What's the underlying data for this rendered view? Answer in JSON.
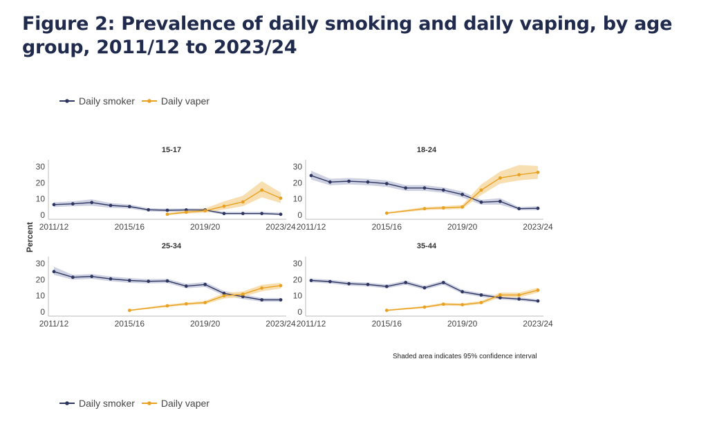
{
  "title": "Figure 2: Prevalence of daily smoking and daily vaping, by age group, 2011/12 to 2023/24",
  "legend": {
    "smoker": "Daily smoker",
    "vaper": "Daily vaper"
  },
  "note": "Shaded area indicates 95% confidence interval",
  "colors": {
    "smoker": "#2d3560",
    "vaper": "#e8a020",
    "smoker_band": "#c5c9dc",
    "vaper_band": "#f7d9a3"
  },
  "chart_data": {
    "type": "line",
    "ylabel": "Percent",
    "ylim": [
      0,
      30
    ],
    "yticks": [
      0,
      10,
      20,
      30
    ],
    "x": [
      "2011/12",
      "2012/13",
      "2013/14",
      "2014/15",
      "2015/16",
      "2016/17",
      "2017/18",
      "2018/19",
      "2019/20",
      "2020/21",
      "2021/22",
      "2022/23",
      "2023/24"
    ],
    "xticks": [
      "2011/12",
      "2015/16",
      "2019/20",
      "2023/24"
    ],
    "panels": [
      {
        "title": "15-17",
        "series": [
          {
            "name": "Daily smoker",
            "values": [
              6.5,
              7,
              7.8,
              6,
              5.3,
              3.3,
              3,
              3.2,
              3.2,
              1,
              1,
              1,
              0.5
            ],
            "ci_lower": [
              5,
              5.5,
              5.8,
              4.5,
              4,
              2.3,
              2,
              2.2,
              2.2,
              0.3,
              0.3,
              0.3,
              0.1
            ],
            "ci_upper": [
              8,
              8.5,
              9.8,
              7.5,
              6.6,
              4.3,
              4,
              4.2,
              4.2,
              2,
              2,
              2,
              1.5
            ]
          },
          {
            "name": "Daily vaper",
            "values": [
              null,
              null,
              null,
              null,
              null,
              null,
              0.5,
              1.8,
              2.7,
              5.5,
              8.2,
              15.5,
              10.5
            ],
            "ci_lower": [
              null,
              null,
              null,
              null,
              null,
              null,
              0.1,
              0.9,
              1.5,
              3.5,
              5.5,
              11,
              7.5
            ],
            "ci_upper": [
              null,
              null,
              null,
              null,
              null,
              null,
              1.2,
              3,
              4.2,
              8.5,
              12,
              21,
              14
            ]
          }
        ]
      },
      {
        "title": "18-24",
        "series": [
          {
            "name": "Daily smoker",
            "values": [
              24.5,
              20.5,
              21,
              20.5,
              19.5,
              16.8,
              16.8,
              15.5,
              12.8,
              8,
              8.5,
              4,
              4.2
            ],
            "ci_lower": [
              22,
              18.5,
              19,
              18.5,
              17.5,
              15,
              15,
              13.8,
              11,
              6.5,
              6.5,
              3,
              3
            ],
            "ci_upper": [
              27.5,
              22.5,
              23,
              22.5,
              21.5,
              18.6,
              18.6,
              17.2,
              14.6,
              9.5,
              10.5,
              5,
              5.5
            ]
          },
          {
            "name": "Daily vaper",
            "values": [
              null,
              null,
              null,
              null,
              1.2,
              null,
              4,
              4.5,
              5,
              15.5,
              23,
              25,
              26.5
            ],
            "ci_lower": [
              null,
              null,
              null,
              null,
              0.8,
              null,
              3,
              3.5,
              3.8,
              12.5,
              19.5,
              21.5,
              22.5
            ],
            "ci_upper": [
              null,
              null,
              null,
              null,
              1.7,
              null,
              5,
              5.5,
              6.3,
              19,
              27,
              31,
              30.5
            ]
          }
        ]
      },
      {
        "title": "25-34",
        "series": [
          {
            "name": "Daily smoker",
            "values": [
              25,
              21.5,
              22,
              20.5,
              19.5,
              19,
              19.2,
              16,
              17,
              11.5,
              9.5,
              7.5,
              7.5
            ],
            "ci_lower": [
              23,
              20,
              20.5,
              19,
              18,
              17.7,
              17.9,
              14.6,
              15.5,
              10,
              8,
              6.3,
              6.3
            ],
            "ci_upper": [
              28,
              23,
              23.5,
              22,
              21,
              20.3,
              20.5,
              17.4,
              18.5,
              13,
              11,
              8.7,
              8.7
            ]
          },
          {
            "name": "Daily vaper",
            "values": [
              null,
              null,
              null,
              null,
              1,
              null,
              3.8,
              5,
              5.8,
              10,
              11,
              14.8,
              16.3
            ],
            "ci_lower": [
              null,
              null,
              null,
              null,
              0.6,
              null,
              3,
              4.2,
              4.8,
              8.3,
              9.3,
              12.8,
              14.5
            ],
            "ci_upper": [
              null,
              null,
              null,
              null,
              1.5,
              null,
              4.6,
              5.8,
              6.8,
              11.7,
              12.7,
              16.8,
              18
            ]
          }
        ]
      },
      {
        "title": "35-44",
        "series": [
          {
            "name": "Daily smoker",
            "values": [
              19.5,
              18.8,
              17.5,
              17,
              15.8,
              18.2,
              15,
              18.2,
              12.5,
              10.5,
              8.8,
              8,
              6.8
            ],
            "ci_lower": [
              18.3,
              17.6,
              16.3,
              15.8,
              14.6,
              16.9,
              13.8,
              16.9,
              11.3,
              9.3,
              7.7,
              6.9,
              5.8
            ],
            "ci_upper": [
              20.7,
              20,
              18.7,
              18.2,
              17,
              19.5,
              16.2,
              19.5,
              13.7,
              11.7,
              9.9,
              9.1,
              7.8
            ]
          },
          {
            "name": "Daily vaper",
            "values": [
              null,
              null,
              null,
              null,
              1,
              null,
              3,
              4.8,
              4.5,
              5.8,
              10.5,
              10.5,
              13.5
            ],
            "ci_lower": [
              null,
              null,
              null,
              null,
              0.6,
              null,
              2.3,
              3.9,
              3.7,
              4.8,
              9,
              9,
              12
            ],
            "ci_upper": [
              null,
              null,
              null,
              null,
              1.5,
              null,
              3.7,
              5.7,
              5.3,
              6.8,
              12,
              12,
              15
            ]
          }
        ]
      }
    ]
  }
}
